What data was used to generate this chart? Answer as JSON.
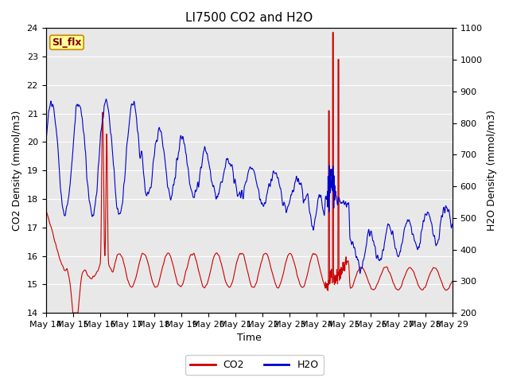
{
  "title": "LI7500 CO2 and H2O",
  "xlabel": "Time",
  "ylabel_left": "CO2 Density (mmol/m3)",
  "ylabel_right": "H2O Density (mmol/m3)",
  "ylim_left": [
    14.0,
    24.0
  ],
  "ylim_right": [
    200,
    1100
  ],
  "co2_color": "#cc0000",
  "h2o_color": "#0000cc",
  "fig_bg_color": "#ffffff",
  "plot_bg_color": "#e8e8e8",
  "annotation_text": "SI_flx",
  "annotation_bg": "#ffff99",
  "annotation_border": "#cc8800",
  "legend_co2": "CO2",
  "legend_h2o": "H2O",
  "title_fontsize": 11,
  "axis_fontsize": 9,
  "tick_fontsize": 8,
  "legend_fontsize": 9,
  "x_tick_labels": [
    "May 14",
    "May 15",
    "May 16",
    "May 17",
    "May 18",
    "May 19",
    "May 20",
    "May 21",
    "May 22",
    "May 23",
    "May 24",
    "May 25",
    "May 26",
    "May 27",
    "May 28",
    "May 29"
  ],
  "n_points": 3000
}
